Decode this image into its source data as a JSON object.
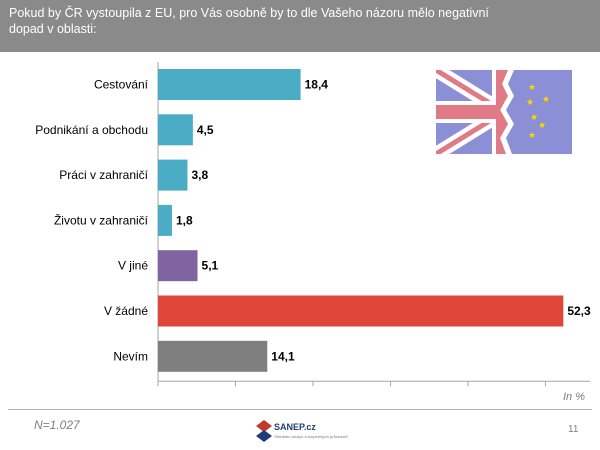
{
  "header": {
    "title": "Pokud by ČR vystoupila z EU, pro Vás osobně by to dle Vašeho názoru mělo negativní\ndopad  v oblasti:"
  },
  "chart_data": {
    "type": "bar",
    "orientation": "horizontal",
    "categories": [
      "Cestování",
      "Podnikání a obchodu",
      "Práci v zahraničí",
      "Životu v zahraničí",
      "V jiné",
      "V žádné",
      "Nevím"
    ],
    "values": [
      18.4,
      4.5,
      3.8,
      1.8,
      5.1,
      52.3,
      14.1
    ],
    "value_labels": [
      "18,4",
      "4,5",
      "3,8",
      "1,8",
      "5,1",
      "52,3",
      "14,1"
    ],
    "colors": [
      "#4bacc6",
      "#4bacc6",
      "#4bacc6",
      "#4bacc6",
      "#8064a2",
      "#e0453a",
      "#7f7f7f"
    ],
    "xlim": [
      0,
      60
    ],
    "grid": false,
    "unit_label": "In %"
  },
  "footer": {
    "sample": "N=1.027",
    "logo_name": "SANEP.cz",
    "logo_tagline": "Středisko analýz a empirických průzkumů",
    "page_number": "11"
  },
  "colors": {
    "header_bg": "#8a8a8a",
    "flag_blue": "#8a8fd6",
    "flag_red": "#e07a86"
  },
  "icons": {
    "flag": "torn-uk-eu-flag-icon"
  }
}
